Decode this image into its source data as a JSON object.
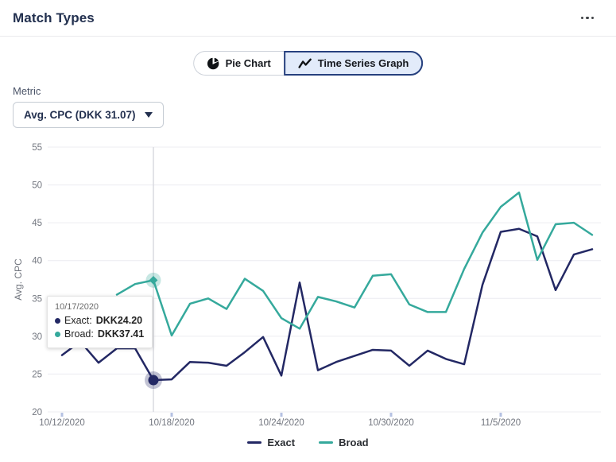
{
  "header": {
    "title": "Match Types",
    "menu_icon": "ellipsis-icon"
  },
  "view_toggle": {
    "options": [
      {
        "label": "Pie Chart",
        "icon": "pie-chart-icon",
        "selected": false
      },
      {
        "label": "Time Series Graph",
        "icon": "line-chart-icon",
        "selected": true
      }
    ]
  },
  "metric": {
    "label": "Metric",
    "value": "Avg. CPC (DKK 31.07)",
    "icon": "caret-down-icon"
  },
  "tooltip": {
    "date": "10/17/2020",
    "rows": [
      {
        "label": "Exact:",
        "value": "DKK24.20",
        "color": "#232864"
      },
      {
        "label": "Broad:",
        "value": "DKK37.41",
        "color": "#35a99c"
      }
    ]
  },
  "legend": [
    {
      "label": "Exact",
      "color": "#232864"
    },
    {
      "label": "Broad",
      "color": "#35a99c"
    }
  ],
  "colors": {
    "accent_selected_bg": "#e2ebfa",
    "accent_selected_border": "#26407e",
    "exact": "#232864",
    "broad": "#35a99c",
    "exact_halo": "rgba(35,40,100,0.28)",
    "broad_halo": "rgba(53,169,156,0.28)",
    "grid": "#ececf1",
    "axis_text": "#71757e",
    "hover_line": "#d9dae0",
    "x_tick": "#b5c1e2"
  },
  "chart_data": {
    "type": "line",
    "title": "",
    "xlabel": "",
    "ylabel": "Avg. CPC",
    "ylim": [
      20,
      55
    ],
    "y_ticks": [
      20,
      25,
      30,
      35,
      40,
      45,
      50,
      55
    ],
    "grid": "horizontal",
    "legend_position": "bottom",
    "x": [
      "10/12/2020",
      "10/13/2020",
      "10/14/2020",
      "10/15/2020",
      "10/16/2020",
      "10/17/2020",
      "10/18/2020",
      "10/19/2020",
      "10/20/2020",
      "10/21/2020",
      "10/22/2020",
      "10/23/2020",
      "10/24/2020",
      "10/25/2020",
      "10/26/2020",
      "10/27/2020",
      "10/28/2020",
      "10/29/2020",
      "10/30/2020",
      "10/31/2020",
      "11/1/2020",
      "11/2/2020",
      "11/3/2020",
      "11/4/2020",
      "11/5/2020",
      "11/6/2020",
      "11/7/2020",
      "11/8/2020",
      "11/9/2020",
      "11/10/2020"
    ],
    "x_tick_indices": [
      0,
      6,
      12,
      18,
      24
    ],
    "x_tick_labels": [
      "10/12/2020",
      "10/18/2020",
      "10/24/2020",
      "10/30/2020",
      "11/5/2020"
    ],
    "series": [
      {
        "name": "Exact",
        "color": "#232864",
        "values": [
          27.5,
          29.3,
          26.5,
          28.4,
          28.4,
          24.2,
          24.3,
          26.6,
          26.5,
          26.1,
          27.9,
          29.9,
          24.8,
          37.1,
          25.5,
          26.6,
          27.4,
          28.2,
          28.1,
          26.1,
          28.1,
          27.0,
          26.3,
          36.8,
          43.8,
          44.2,
          43.2,
          36.1,
          40.8,
          41.5
        ]
      },
      {
        "name": "Broad",
        "color": "#35a99c",
        "values": [
          null,
          null,
          null,
          35.5,
          36.9,
          37.41,
          30.1,
          34.3,
          35.0,
          33.6,
          37.6,
          36.0,
          32.4,
          31.0,
          35.2,
          34.6,
          33.8,
          38.0,
          38.2,
          34.2,
          33.2,
          33.2,
          38.9,
          43.7,
          47.1,
          49.0,
          40.1,
          44.8,
          45.0,
          43.4
        ]
      }
    ],
    "highlight": {
      "index": 5,
      "date": "10/17/2020",
      "exact_value": 24.2,
      "broad_value": 37.41,
      "exact_marker": "circle",
      "broad_marker": "diamond"
    }
  }
}
